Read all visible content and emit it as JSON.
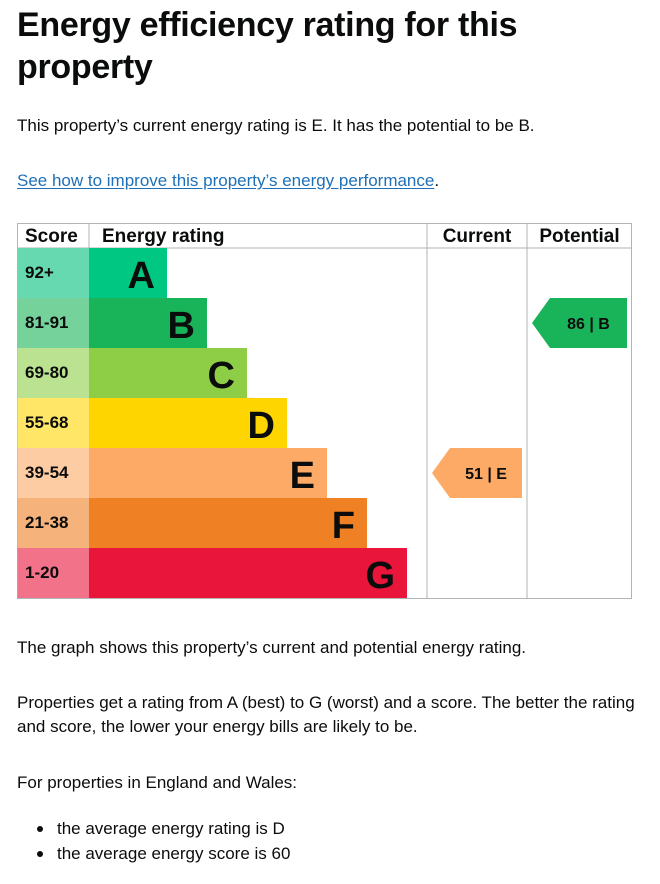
{
  "page": {
    "title": "Energy efficiency rating for this property",
    "intro": "This property’s current energy rating is E. It has the potential to be B.",
    "link_text": "See how to improve this property’s energy performance",
    "link_suffix": ".",
    "graph_note": "The graph shows this property’s current and potential energy rating.",
    "explain": "Properties get a rating from A (best) to G (worst) and a score. The better the rating and score, the lower your energy bills are likely to be.",
    "england_wales": "For properties in England and Wales:",
    "bullets": [
      "the average energy rating is D",
      "the average energy score is 60"
    ]
  },
  "chart_data": {
    "type": "bar",
    "headers": {
      "score": "Score",
      "rating": "Energy rating",
      "current": "Current",
      "potential": "Potential"
    },
    "bands": [
      {
        "letter": "A",
        "range": "92+",
        "color": "#00c781",
        "score_bg": "#66d9b0"
      },
      {
        "letter": "B",
        "range": "81-91",
        "color": "#19b459",
        "score_bg": "#75d29b"
      },
      {
        "letter": "C",
        "range": "69-80",
        "color": "#8dce46",
        "score_bg": "#bbe290"
      },
      {
        "letter": "D",
        "range": "55-68",
        "color": "#ffd500",
        "score_bg": "#ffe666"
      },
      {
        "letter": "E",
        "range": "39-54",
        "color": "#fcaa65",
        "score_bg": "#fdcca3"
      },
      {
        "letter": "F",
        "range": "21-38",
        "color": "#ef8023",
        "score_bg": "#f5b37b"
      },
      {
        "letter": "G",
        "range": "1-20",
        "color": "#e9153b",
        "score_bg": "#f27389"
      }
    ],
    "current": {
      "score": 51,
      "band": "E",
      "label": "51 | E"
    },
    "potential": {
      "score": 86,
      "band": "B",
      "label": "86 | B"
    }
  }
}
